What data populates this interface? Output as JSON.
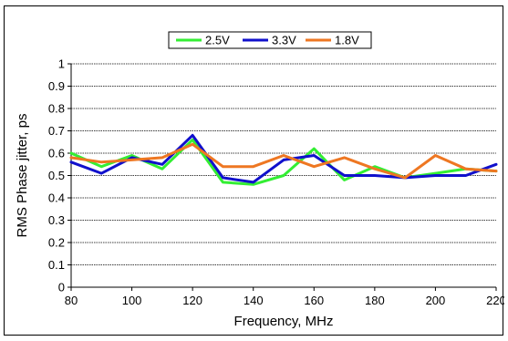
{
  "chart_data": {
    "type": "line",
    "title": "",
    "xlabel": "Frequency, MHz",
    "ylabel": "RMS Phase jitter, ps",
    "xlim": [
      80,
      220
    ],
    "ylim": [
      0,
      1
    ],
    "x_ticks": [
      80,
      100,
      120,
      140,
      160,
      180,
      200,
      220
    ],
    "y_ticks": [
      0,
      0.1,
      0.2,
      0.3,
      0.4,
      0.5,
      0.6,
      0.7,
      0.8,
      0.9,
      1
    ],
    "grid": "horizontal",
    "legend_position": "top-right",
    "series": [
      {
        "name": "2.5V",
        "color": "#33ee33",
        "x": [
          80,
          90,
          100,
          110,
          120,
          130,
          140,
          150,
          160,
          170,
          180,
          190,
          200,
          210,
          220
        ],
        "y": [
          0.6,
          0.54,
          0.59,
          0.53,
          0.66,
          0.47,
          0.46,
          0.5,
          0.62,
          0.48,
          0.54,
          0.49,
          0.51,
          0.53,
          0.52
        ]
      },
      {
        "name": "3.3V",
        "color": "#1010cc",
        "x": [
          80,
          90,
          100,
          110,
          120,
          130,
          140,
          150,
          160,
          170,
          180,
          190,
          200,
          210,
          220
        ],
        "y": [
          0.56,
          0.51,
          0.58,
          0.55,
          0.68,
          0.49,
          0.47,
          0.57,
          0.59,
          0.5,
          0.5,
          0.49,
          0.5,
          0.5,
          0.55
        ]
      },
      {
        "name": "1.8V",
        "color": "#ee7722",
        "x": [
          80,
          90,
          100,
          110,
          120,
          130,
          140,
          150,
          160,
          170,
          180,
          190,
          200,
          210,
          220
        ],
        "y": [
          0.58,
          0.56,
          0.57,
          0.58,
          0.64,
          0.54,
          0.54,
          0.59,
          0.54,
          0.58,
          0.53,
          0.49,
          0.59,
          0.53,
          0.52
        ]
      }
    ]
  }
}
